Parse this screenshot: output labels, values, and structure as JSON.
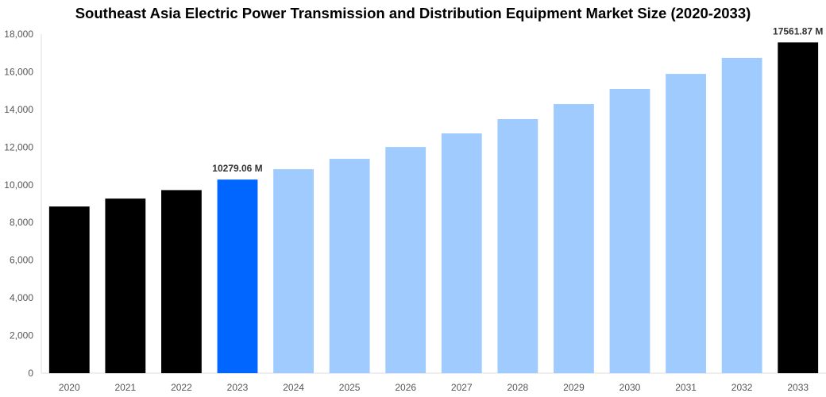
{
  "chart_data": {
    "type": "bar",
    "title": "Southeast Asia Electric Power Transmission and Distribution Equipment Market Size (2020-2033)",
    "xlabel": "",
    "ylabel": "",
    "ylim": [
      0,
      18000
    ],
    "yticks": [
      "0",
      "2,000",
      "4,000",
      "6,000",
      "8,000",
      "10,000",
      "12,000",
      "14,000",
      "16,000",
      "18,000"
    ],
    "grid": false,
    "categories": [
      "2020",
      "2021",
      "2022",
      "2023",
      "2024",
      "2025",
      "2026",
      "2027",
      "2028",
      "2029",
      "2030",
      "2031",
      "2032",
      "2033"
    ],
    "values": [
      8850,
      9270,
      9720,
      10279.06,
      10830,
      11380,
      12010,
      12730,
      13490,
      14290,
      15090,
      15890,
      16740,
      17561.87
    ],
    "bar_colors": [
      "#000000",
      "#000000",
      "#000000",
      "#0066ff",
      "#a0cbff",
      "#a0cbff",
      "#a0cbff",
      "#a0cbff",
      "#a0cbff",
      "#a0cbff",
      "#a0cbff",
      "#a0cbff",
      "#a0cbff",
      "#000000"
    ],
    "data_labels": {
      "3": "10279.06 M",
      "13": "17561.87 M"
    }
  }
}
